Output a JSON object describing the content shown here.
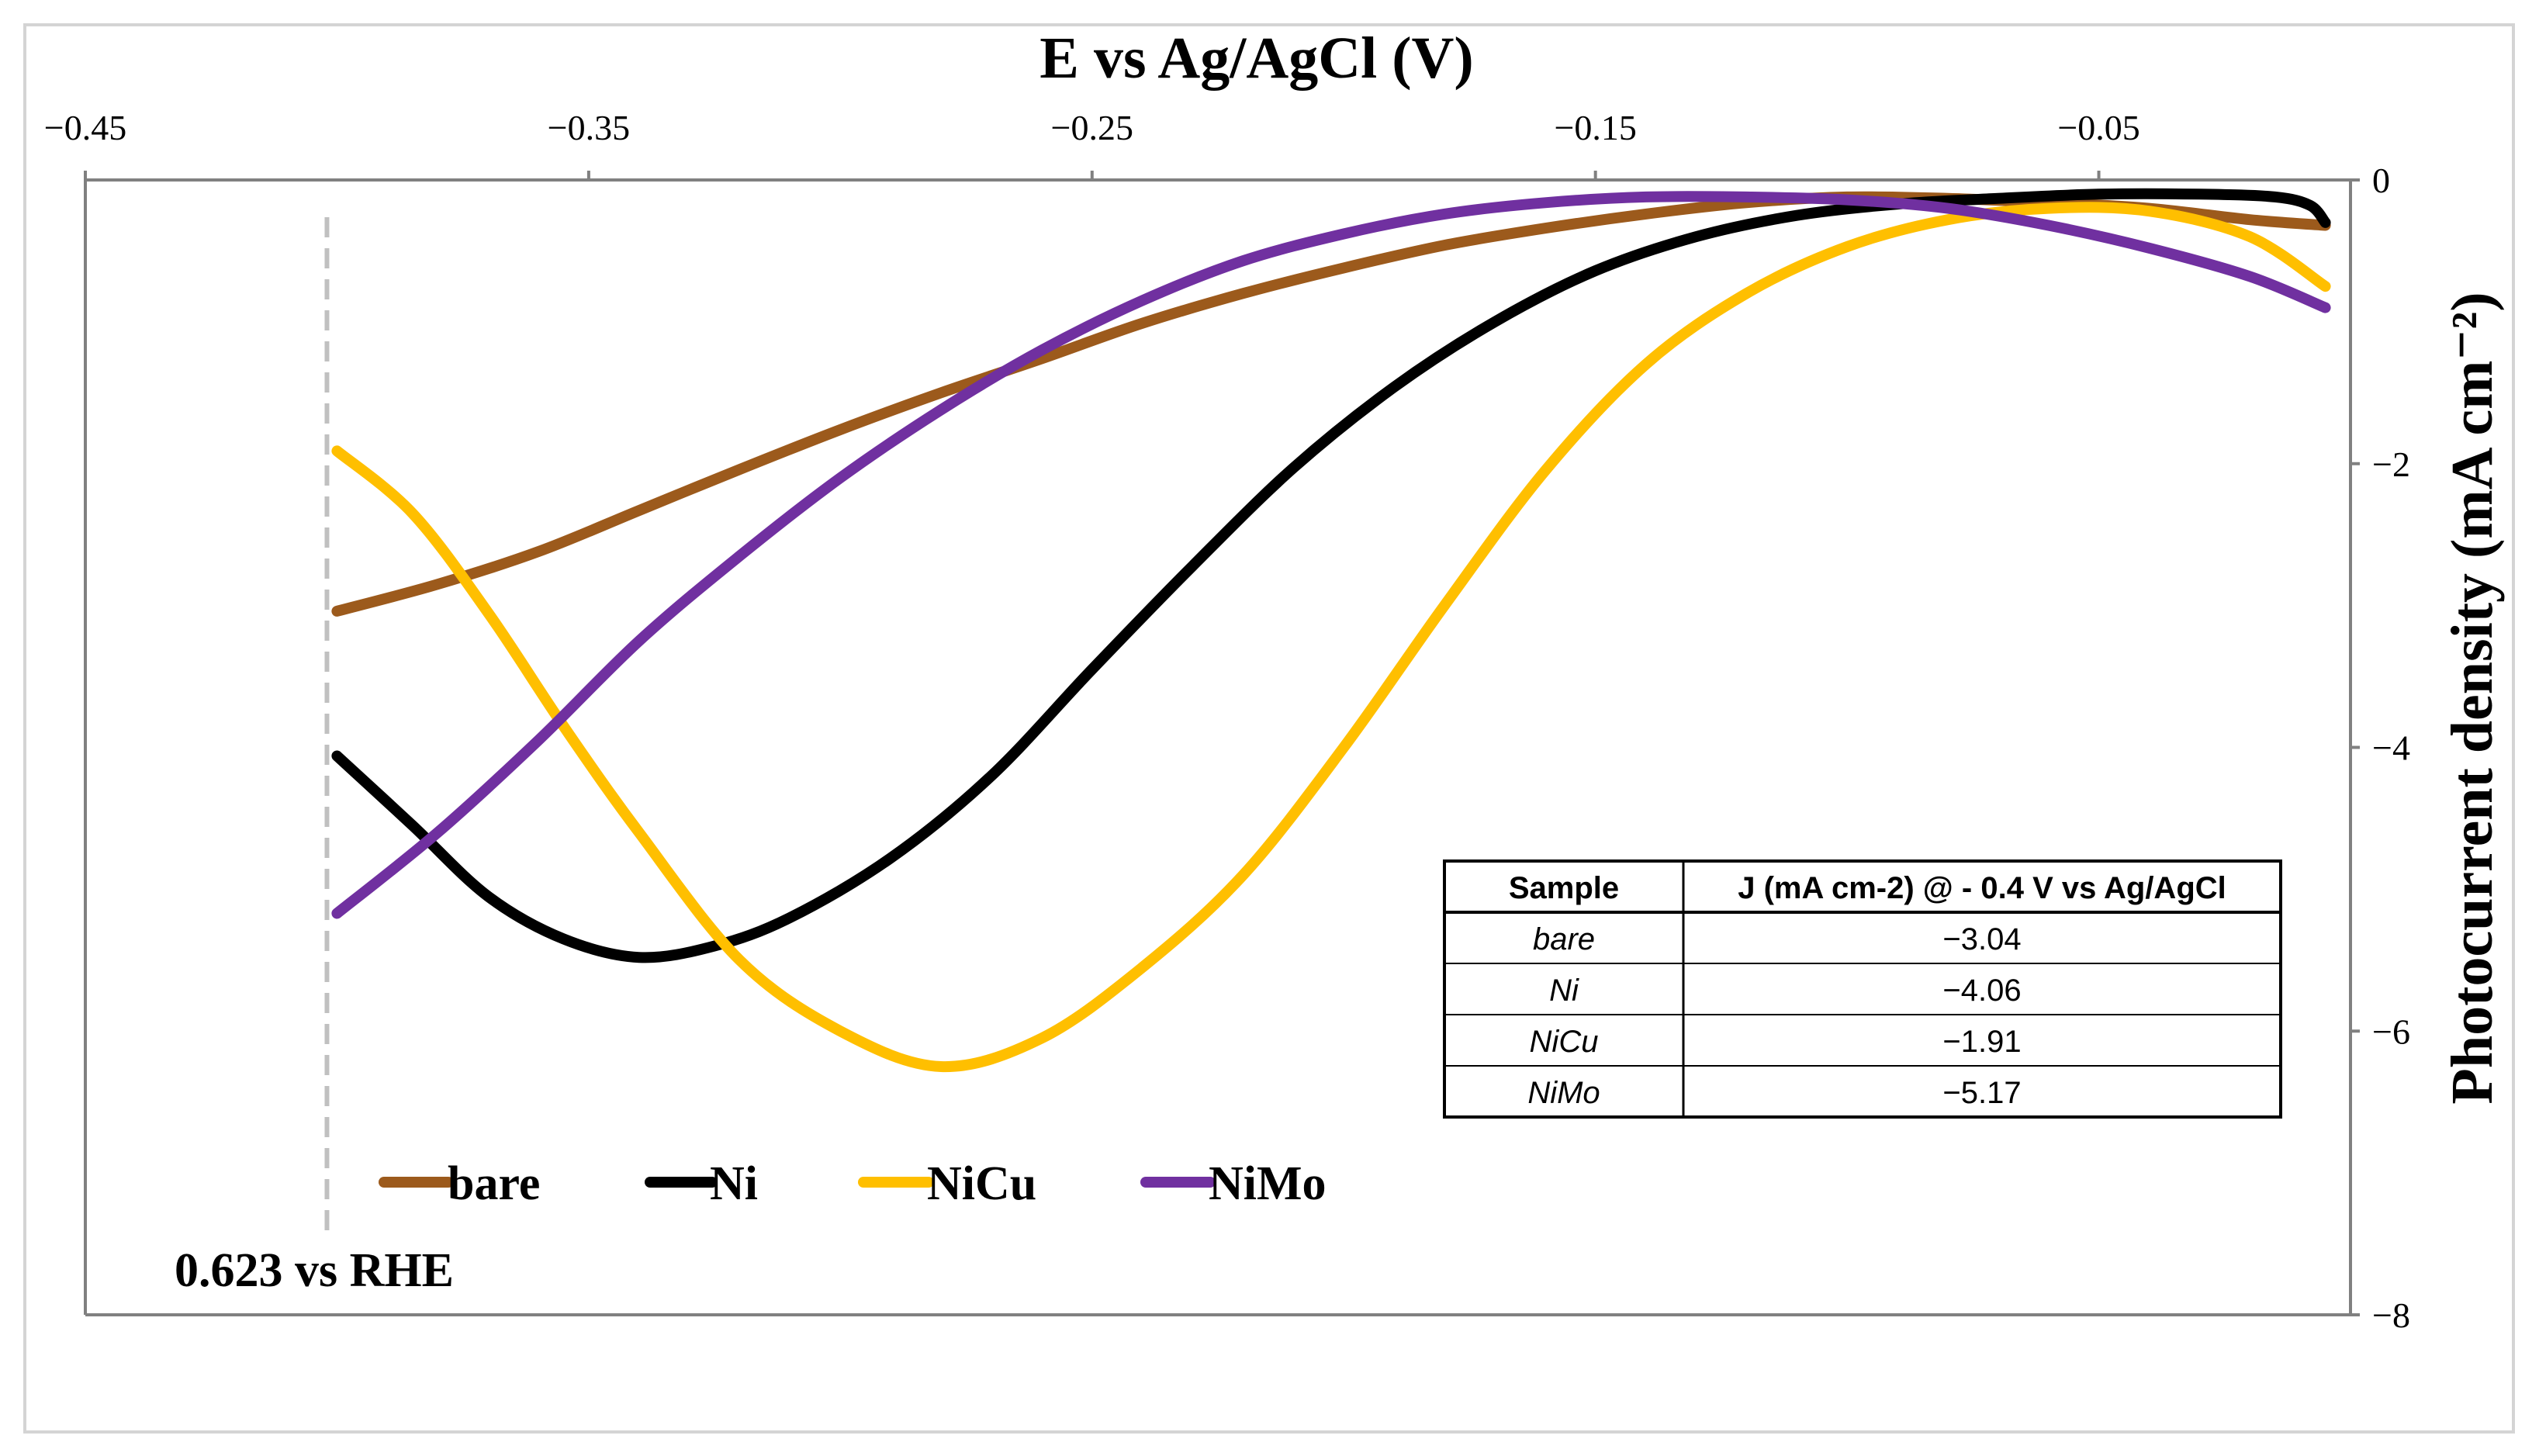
{
  "chart_data": {
    "type": "line",
    "title": "",
    "xlabel": "E vs Ag/AgCl (V)",
    "ylabel": "Photocurrent density (mA cm⁻²)",
    "xlim": [
      -0.45,
      0.0
    ],
    "ylim": [
      -8,
      0
    ],
    "x_ticks": [
      -0.45,
      -0.35,
      -0.25,
      -0.15,
      -0.05
    ],
    "x_tick_labels": [
      "−0.45",
      "−0.35",
      "−0.25",
      "−0.15",
      "−0.05"
    ],
    "y_ticks": [
      0,
      -2,
      -4,
      -6,
      -8
    ],
    "y_tick_labels": [
      "0",
      "−2",
      "−4",
      "−6",
      "−8"
    ],
    "x_axis_position": "top",
    "y_axis_position": "right",
    "grid": false,
    "legend_position": "bottom-left",
    "series": [
      {
        "name": "bare",
        "color": "#9c5a1c",
        "x": [
          -0.4,
          -0.38,
          -0.36,
          -0.34,
          -0.32,
          -0.3,
          -0.28,
          -0.26,
          -0.24,
          -0.22,
          -0.2,
          -0.18,
          -0.16,
          -0.14,
          -0.12,
          -0.1,
          -0.08,
          -0.06,
          -0.04,
          -0.02,
          -0.005
        ],
        "y": [
          -3.04,
          -2.85,
          -2.62,
          -2.33,
          -2.04,
          -1.76,
          -1.5,
          -1.26,
          -1.01,
          -0.8,
          -0.62,
          -0.46,
          -0.34,
          -0.24,
          -0.16,
          -0.12,
          -0.13,
          -0.16,
          -0.2,
          -0.28,
          -0.32
        ]
      },
      {
        "name": "Ni",
        "color": "#000000",
        "x": [
          -0.4,
          -0.385,
          -0.37,
          -0.355,
          -0.34,
          -0.325,
          -0.31,
          -0.29,
          -0.27,
          -0.25,
          -0.23,
          -0.21,
          -0.19,
          -0.17,
          -0.15,
          -0.13,
          -0.11,
          -0.09,
          -0.07,
          -0.05,
          -0.03,
          -0.015,
          -0.008,
          -0.005
        ],
        "y": [
          -4.06,
          -4.55,
          -5.05,
          -5.35,
          -5.48,
          -5.4,
          -5.2,
          -4.78,
          -4.2,
          -3.45,
          -2.72,
          -2.03,
          -1.46,
          -1.0,
          -0.64,
          -0.4,
          -0.25,
          -0.17,
          -0.13,
          -0.1,
          -0.1,
          -0.12,
          -0.18,
          -0.3
        ]
      },
      {
        "name": "NiCu",
        "color": "#ffbf00",
        "x": [
          -0.4,
          -0.385,
          -0.37,
          -0.355,
          -0.34,
          -0.32,
          -0.3,
          -0.28,
          -0.26,
          -0.24,
          -0.22,
          -0.2,
          -0.18,
          -0.16,
          -0.14,
          -0.12,
          -0.1,
          -0.08,
          -0.06,
          -0.04,
          -0.02,
          -0.005
        ],
        "y": [
          -1.91,
          -2.35,
          -3.05,
          -3.85,
          -4.6,
          -5.5,
          -6.0,
          -6.25,
          -6.05,
          -5.55,
          -4.9,
          -4.0,
          -3.0,
          -2.05,
          -1.3,
          -0.8,
          -0.47,
          -0.28,
          -0.2,
          -0.22,
          -0.4,
          -0.75
        ]
      },
      {
        "name": "NiMo",
        "color": "#7030a0",
        "x": [
          -0.4,
          -0.38,
          -0.36,
          -0.34,
          -0.32,
          -0.3,
          -0.28,
          -0.26,
          -0.24,
          -0.22,
          -0.2,
          -0.18,
          -0.16,
          -0.14,
          -0.12,
          -0.1,
          -0.08,
          -0.06,
          -0.04,
          -0.02,
          -0.005
        ],
        "y": [
          -5.17,
          -4.6,
          -3.95,
          -3.25,
          -2.65,
          -2.1,
          -1.62,
          -1.2,
          -0.85,
          -0.57,
          -0.38,
          -0.24,
          -0.16,
          -0.12,
          -0.12,
          -0.14,
          -0.2,
          -0.32,
          -0.48,
          -0.68,
          -0.9
        ]
      }
    ],
    "reference_line": {
      "x": -0.402,
      "label": "0.623 vs RHE",
      "style": "dashed",
      "color": "#c0c0c0"
    },
    "inset_table": {
      "headers": [
        "Sample",
        "J (mA cm-2) @ - 0.4 V vs Ag/AgCl"
      ],
      "rows": [
        {
          "sample": "bare",
          "value": "−3.04"
        },
        {
          "sample": "Ni",
          "value": "−4.06"
        },
        {
          "sample": "NiCu",
          "value": "−1.91"
        },
        {
          "sample": "NiMo",
          "value": "−5.17"
        }
      ]
    }
  }
}
